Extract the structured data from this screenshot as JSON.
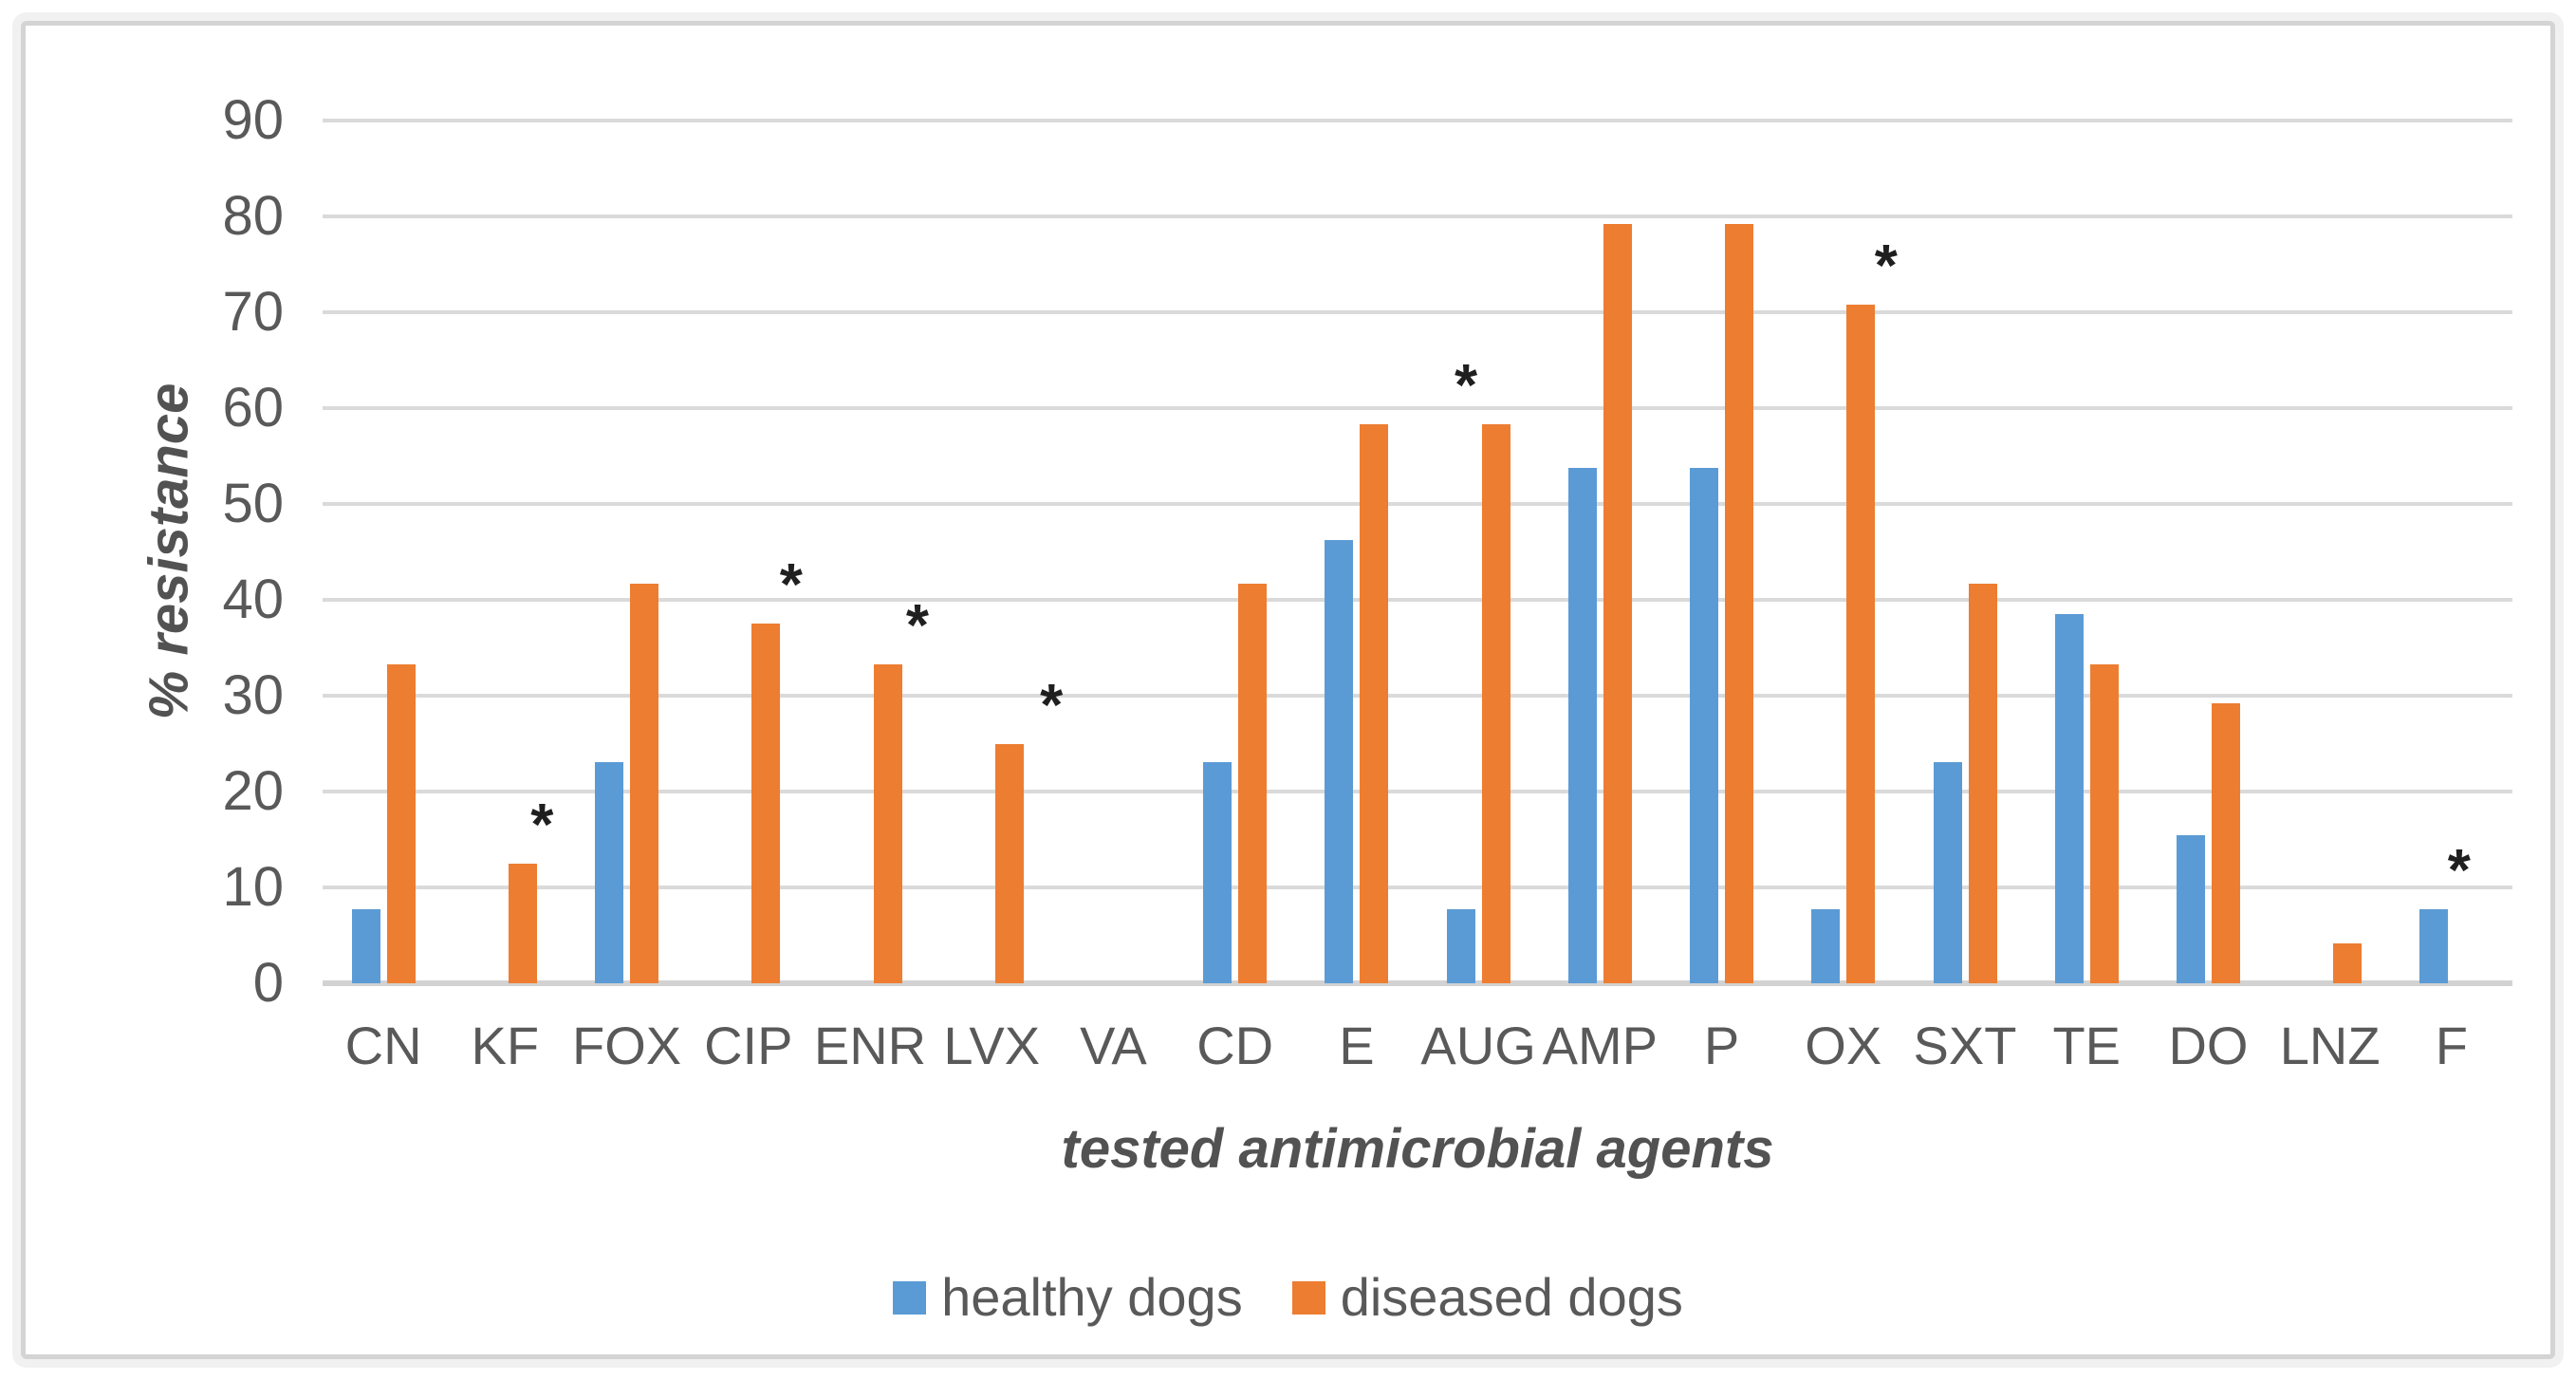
{
  "chart_data": {
    "type": "bar",
    "title": "",
    "xlabel": "tested antimicrobial agents",
    "ylabel": "% resistance",
    "ylim": [
      0,
      90
    ],
    "ytick_step": 10,
    "yticks": [
      90,
      80,
      70,
      60,
      50,
      40,
      30,
      20,
      10,
      0
    ],
    "grid": true,
    "legend_position": "bottom",
    "categories": [
      "CN",
      "KF",
      "FOX",
      "CIP",
      "ENR",
      "LVX",
      "VA",
      "CD",
      "E",
      "AUG",
      "AMP",
      "P",
      "OX",
      "SXT",
      "TE",
      "DO",
      "LNZ",
      "F"
    ],
    "series": [
      {
        "name": "healthy dogs",
        "color": "#5B9BD5",
        "values": [
          7.7,
          0,
          23.1,
          0,
          0,
          0,
          0,
          23.1,
          46.2,
          7.7,
          53.8,
          53.8,
          7.7,
          23.1,
          38.5,
          15.4,
          0,
          7.7
        ]
      },
      {
        "name": "diseased dogs",
        "color": "#ED7D31",
        "values": [
          33.3,
          12.5,
          41.7,
          37.5,
          33.3,
          25,
          0,
          41.7,
          58.3,
          58.3,
          79.2,
          79.2,
          70.8,
          41.7,
          33.3,
          29.2,
          4.2,
          0
        ]
      }
    ],
    "significance_markers": {
      "symbol": "*",
      "annotations": [
        {
          "category": "KF",
          "dx": 39
        },
        {
          "category": "CIP",
          "dx": 45
        },
        {
          "category": "ENR",
          "dx": 50
        },
        {
          "category": "LVX",
          "dx": 63
        },
        {
          "category": "AUG",
          "dx": -13
        },
        {
          "category": "OX",
          "dx": 45
        },
        {
          "category": "F",
          "dx": 8
        }
      ]
    }
  },
  "legend": {
    "items": [
      {
        "label": "healthy dogs",
        "color": "#5B9BD5"
      },
      {
        "label": "diseased dogs",
        "color": "#ED7D31"
      }
    ]
  },
  "colors": {
    "gridline": "#dadada",
    "axis_line": "#d2d2d2",
    "tick_text": "#595959",
    "axis_title_text": "#525252",
    "marker_text": "#1f1f1f",
    "frame_border": "#d4d4d4",
    "frame_glow": "#f1f1f1",
    "background": "#ffffff"
  }
}
